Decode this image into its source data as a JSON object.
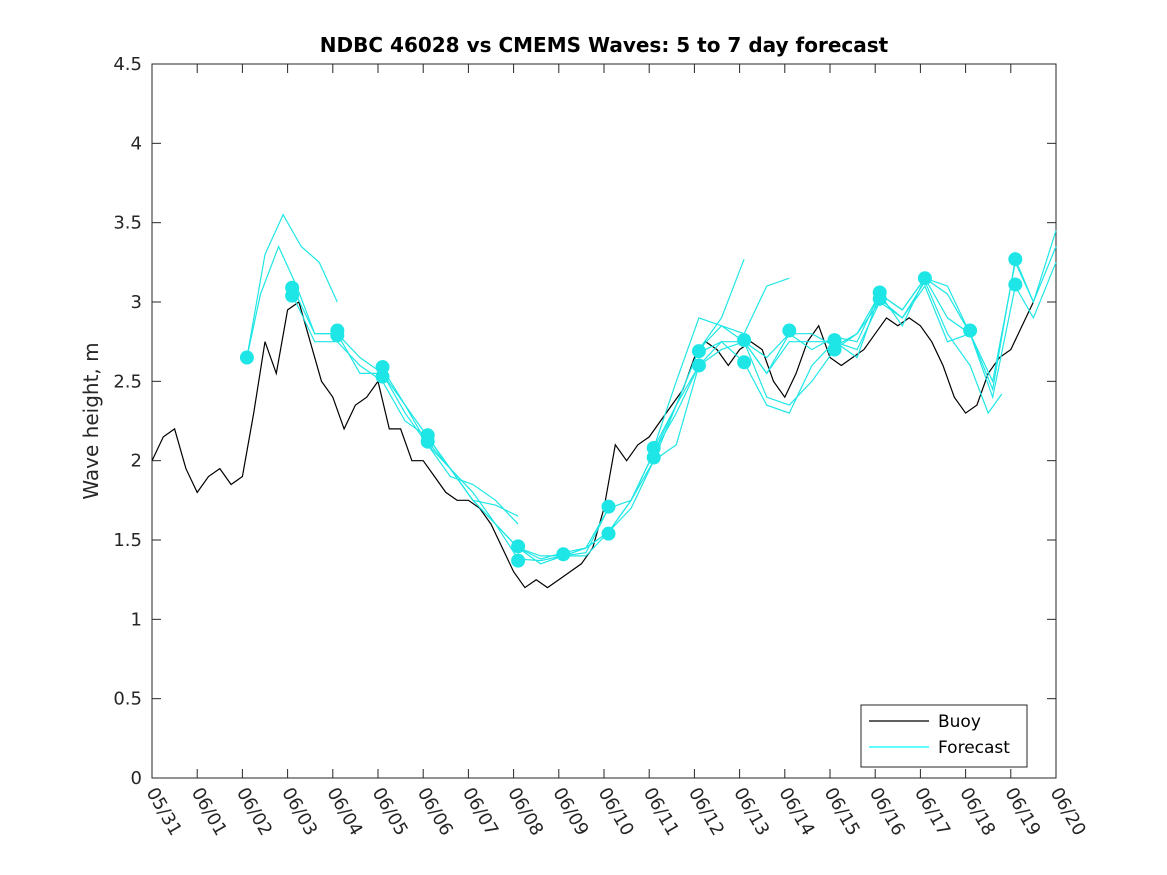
{
  "chart_data": {
    "type": "line",
    "title": "NDBC 46028 vs CMEMS Waves: 5 to 7 day forecast",
    "ylabel": "Wave height, m",
    "xlabel": "",
    "ylim": [
      0,
      4.5
    ],
    "yticks": [
      0,
      0.5,
      1,
      1.5,
      2,
      2.5,
      3,
      3.5,
      4,
      4.5
    ],
    "ytick_labels": [
      "0",
      "0.5",
      "1",
      "1.5",
      "2",
      "2.5",
      "3",
      "3.5",
      "4",
      "4.5"
    ],
    "xlim_day": [
      0,
      20
    ],
    "xtick_labels": [
      "05/31",
      "06/01",
      "06/02",
      "06/03",
      "06/04",
      "06/05",
      "06/06",
      "06/07",
      "06/08",
      "06/09",
      "06/10",
      "06/11",
      "06/12",
      "06/13",
      "06/14",
      "06/15",
      "06/16",
      "06/17",
      "06/18",
      "06/19",
      "06/20"
    ],
    "grid": false,
    "legend": {
      "placement": "bottom-right",
      "entries": [
        {
          "label": "Buoy",
          "color": "#000000"
        },
        {
          "label": "Forecast",
          "color": "#00ffff"
        }
      ]
    },
    "colors": {
      "buoy": "#000000",
      "forecast": "#1fe6e6",
      "marker": "#1fe6e6"
    },
    "buoy": {
      "name": "Buoy",
      "x": [
        0,
        0.25,
        0.5,
        0.75,
        1.0,
        1.25,
        1.5,
        1.75,
        2.0,
        2.25,
        2.5,
        2.75,
        3.0,
        3.25,
        3.5,
        3.75,
        4.0,
        4.25,
        4.5,
        4.75,
        5.0,
        5.25,
        5.5,
        5.75,
        6.0,
        6.25,
        6.5,
        6.75,
        7.0,
        7.25,
        7.5,
        7.75,
        8.0,
        8.25,
        8.5,
        8.75,
        9.0,
        9.25,
        9.5,
        9.75,
        10.0,
        10.25,
        10.5,
        10.75,
        11.0,
        11.25,
        11.5,
        11.75,
        12.0,
        12.25,
        12.5,
        12.75,
        13.0,
        13.25,
        13.5,
        13.75,
        14.0,
        14.25,
        14.5,
        14.75,
        15.0,
        15.25,
        15.5,
        15.75,
        16.0,
        16.25,
        16.5,
        16.75,
        17.0,
        17.25,
        17.5,
        17.75,
        18.0,
        18.25,
        18.5,
        18.75,
        19.0,
        19.25,
        19.5
      ],
      "y": [
        2.0,
        2.15,
        2.2,
        1.95,
        1.8,
        1.9,
        1.95,
        1.85,
        1.9,
        2.3,
        2.75,
        2.55,
        2.95,
        3.0,
        2.75,
        2.5,
        2.4,
        2.2,
        2.35,
        2.4,
        2.5,
        2.2,
        2.2,
        2.0,
        2.0,
        1.9,
        1.8,
        1.75,
        1.75,
        1.7,
        1.6,
        1.45,
        1.3,
        1.2,
        1.25,
        1.2,
        1.25,
        1.3,
        1.35,
        1.45,
        1.7,
        2.1,
        2.0,
        2.1,
        2.15,
        2.25,
        2.35,
        2.45,
        2.65,
        2.75,
        2.7,
        2.6,
        2.7,
        2.75,
        2.7,
        2.5,
        2.4,
        2.55,
        2.75,
        2.85,
        2.65,
        2.6,
        2.65,
        2.7,
        2.8,
        2.9,
        2.85,
        2.9,
        2.85,
        2.75,
        2.6,
        2.4,
        2.3,
        2.35,
        2.55,
        2.65,
        2.7,
        2.85,
        3.0
      ]
    },
    "forecast_series": [
      {
        "x": [
          2.1,
          2.5,
          2.9,
          3.3,
          3.7,
          4.1
        ],
        "y": [
          2.65,
          3.3,
          3.55,
          3.35,
          3.25,
          3.0
        ]
      },
      {
        "x": [
          2.1,
          2.4,
          2.8,
          3.2,
          3.6,
          4.1
        ],
        "y": [
          2.65,
          3.05,
          3.35,
          3.1,
          2.8,
          2.8
        ]
      },
      {
        "x": [
          3.1,
          3.6,
          4.1,
          4.6,
          5.1,
          5.6,
          6.1,
          6.6,
          7.1,
          7.6,
          8.1
        ],
        "y": [
          3.05,
          2.75,
          2.75,
          2.6,
          2.5,
          2.25,
          2.15,
          1.95,
          1.75,
          1.72,
          1.65
        ]
      },
      {
        "x": [
          3.1,
          3.6,
          4.1,
          4.6,
          5.1,
          5.6,
          6.1,
          6.6,
          7.1,
          7.6,
          8.1
        ],
        "y": [
          3.1,
          2.8,
          2.8,
          2.55,
          2.55,
          2.35,
          2.1,
          1.9,
          1.85,
          1.75,
          1.6
        ]
      },
      {
        "x": [
          4.1,
          4.6,
          5.1,
          5.6,
          6.1,
          6.6,
          7.1,
          7.6,
          8.1,
          8.6,
          9.1,
          9.6,
          10.1
        ],
        "y": [
          2.8,
          2.65,
          2.55,
          2.3,
          2.1,
          1.95,
          1.8,
          1.6,
          1.45,
          1.35,
          1.4,
          1.4,
          1.55
        ]
      },
      {
        "x": [
          5.1,
          5.6,
          6.1,
          6.6,
          7.1,
          7.6,
          8.1,
          8.6,
          9.1,
          9.6,
          10.1
        ],
        "y": [
          2.58,
          2.35,
          2.15,
          1.95,
          1.75,
          1.6,
          1.38,
          1.37,
          1.4,
          1.42,
          1.7
        ]
      },
      {
        "x": [
          6.1,
          6.6,
          7.1,
          7.6,
          8.1,
          8.6,
          9.1,
          9.6,
          10.1,
          10.6,
          11.1,
          11.6,
          12.1
        ],
        "y": [
          2.12,
          1.95,
          1.75,
          1.6,
          1.45,
          1.38,
          1.42,
          1.45,
          1.55,
          1.75,
          2.0,
          2.35,
          2.6
        ]
      },
      {
        "x": [
          8.1,
          8.6,
          9.1,
          9.6,
          10.1,
          10.6,
          11.1,
          11.6,
          12.1,
          12.6,
          13.1,
          13.6,
          14.1
        ],
        "y": [
          1.45,
          1.4,
          1.4,
          1.45,
          1.7,
          1.75,
          2.05,
          2.35,
          2.7,
          2.85,
          2.75,
          2.55,
          2.8
        ]
      },
      {
        "x": [
          9.1,
          9.6,
          10.1,
          10.6,
          11.1,
          11.6,
          12.1,
          12.6,
          13.1,
          13.6,
          14.1,
          14.6,
          15.1
        ],
        "y": [
          1.4,
          1.45,
          1.55,
          1.7,
          2.0,
          2.1,
          2.6,
          2.7,
          2.75,
          2.4,
          2.35,
          2.5,
          2.7
        ]
      },
      {
        "x": [
          10.1,
          10.6,
          11.1,
          11.6,
          12.1,
          12.6,
          13.1,
          13.6,
          14.1,
          14.6,
          15.1,
          15.6,
          16.1
        ],
        "y": [
          1.55,
          1.75,
          2.05,
          2.3,
          2.6,
          2.75,
          2.62,
          2.35,
          2.3,
          2.6,
          2.75,
          2.7,
          3.0
        ]
      },
      {
        "x": [
          11.1,
          11.6,
          12.1,
          12.6,
          13.1,
          13.6,
          14.1
        ],
        "y": [
          2.08,
          2.5,
          2.9,
          2.85,
          2.8,
          3.1,
          3.15
        ]
      },
      {
        "x": [
          11.1,
          11.6,
          12.1,
          12.6,
          13.1
        ],
        "y": [
          2.08,
          2.35,
          2.7,
          2.9,
          3.27
        ]
      },
      {
        "x": [
          12.1,
          12.6,
          13.1,
          13.6,
          14.1,
          14.6,
          15.1,
          15.6,
          16.1,
          16.6,
          17.1,
          17.6,
          18.1
        ],
        "y": [
          2.68,
          2.75,
          2.75,
          2.55,
          2.75,
          2.75,
          2.75,
          2.65,
          3.05,
          2.95,
          3.15,
          3.1,
          2.8
        ]
      },
      {
        "x": [
          13.1,
          13.6,
          14.1,
          14.6,
          15.1,
          15.6,
          16.1,
          16.6,
          17.1,
          17.6,
          18.1,
          18.6,
          19.1,
          19.5,
          20.0
        ],
        "y": [
          2.75,
          2.65,
          2.8,
          2.7,
          2.78,
          2.75,
          3.05,
          2.95,
          3.15,
          3.05,
          2.8,
          2.5,
          3.25,
          3.0,
          3.35
        ]
      },
      {
        "x": [
          14.1,
          14.6,
          15.1,
          15.6,
          16.1,
          16.6,
          17.1,
          17.6,
          18.1,
          18.6,
          19.1,
          19.5,
          20.0
        ],
        "y": [
          2.8,
          2.8,
          2.72,
          2.8,
          3.05,
          2.85,
          3.15,
          2.9,
          2.8,
          2.45,
          3.27,
          3.0,
          3.45
        ]
      },
      {
        "x": [
          15.1,
          15.6,
          16.1,
          16.6,
          17.1,
          17.6,
          18.1,
          18.6,
          19.1,
          19.5,
          20.0
        ],
        "y": [
          2.7,
          2.8,
          3.0,
          2.9,
          3.1,
          2.75,
          2.8,
          2.4,
          3.1,
          2.9,
          3.25
        ]
      },
      {
        "x": [
          16.1,
          16.6,
          17.1,
          17.6,
          18.1,
          18.5,
          18.8
        ],
        "y": [
          3.02,
          2.9,
          3.13,
          2.8,
          2.6,
          2.3,
          2.42
        ]
      }
    ],
    "markers": {
      "x": [
        2.1,
        3.1,
        3.1,
        4.1,
        4.1,
        5.1,
        5.1,
        6.1,
        6.1,
        8.1,
        8.1,
        9.1,
        10.1,
        10.1,
        11.1,
        11.1,
        12.1,
        12.1,
        13.1,
        13.1,
        14.1,
        15.1,
        15.1,
        16.1,
        16.1,
        17.1,
        18.1,
        19.1,
        19.1
      ],
      "y": [
        2.65,
        3.09,
        3.04,
        2.82,
        2.79,
        2.59,
        2.53,
        2.16,
        2.12,
        1.46,
        1.37,
        1.41,
        1.71,
        1.54,
        2.08,
        2.02,
        2.69,
        2.6,
        2.76,
        2.62,
        2.82,
        2.76,
        2.7,
        3.06,
        3.02,
        3.15,
        2.82,
        3.27,
        3.11
      ]
    }
  }
}
